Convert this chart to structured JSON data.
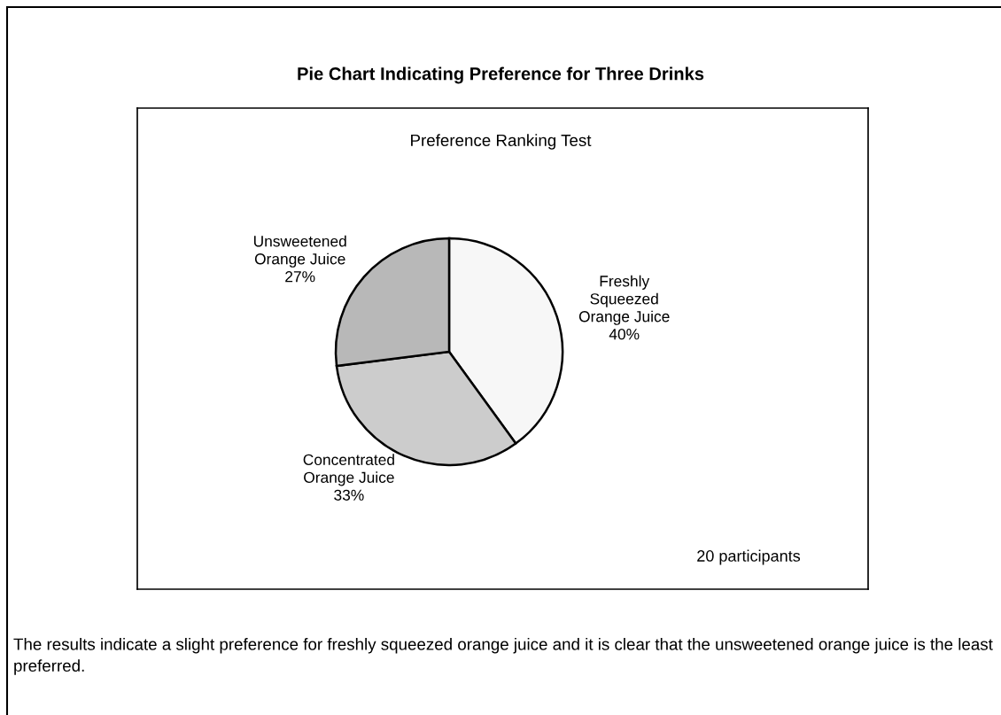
{
  "chart_data": {
    "type": "pie",
    "title": "Pie Chart Indicating Preference for Three Drinks",
    "subtitle": "Preference Ranking Test",
    "categories": [
      "Freshly\nSqueezed\nOrange Juice",
      "Concentrated\nOrange Juice",
      "Unsweetened\nOrange Juice"
    ],
    "values": [
      40,
      33,
      27
    ],
    "value_labels": [
      "40%",
      "33%",
      "27%"
    ],
    "colors": [
      "#f7f7f7",
      "#cccccc",
      "#b8b8b8"
    ],
    "annotations": [
      "20 participants",
      "The results indicate a slight preference for freshly squeezed orange juice and it is clear that the unsweetened orange juice is the least preferred."
    ]
  }
}
